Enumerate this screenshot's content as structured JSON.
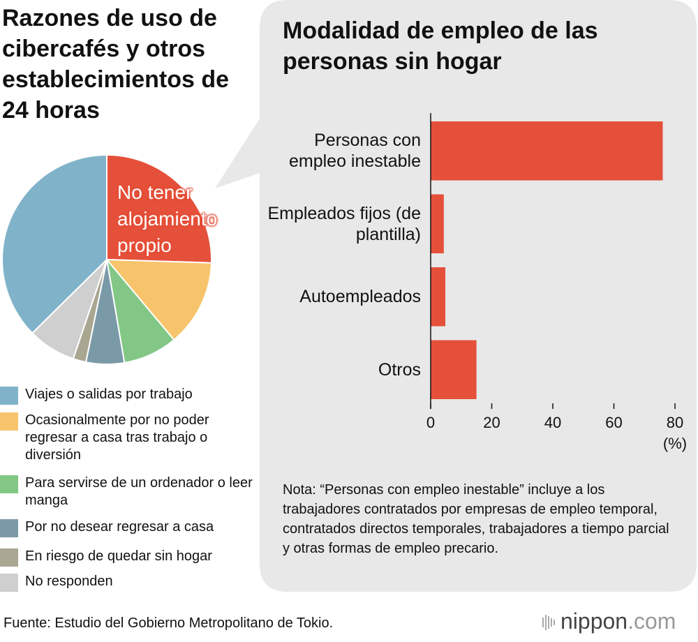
{
  "chart_data": [
    {
      "type": "pie",
      "title": "Razones de uso de cibercafés y otros establecimientos de 24 horas",
      "categories": [
        "No tener alojamiento propio",
        "Ocasionalmente por no poder regresar a casa tras trabajo o diversión",
        "Para servirse de un ordenador o leer manga",
        "Por no desear regresar a casa",
        "En riesgo de quedar sin hogar",
        "No responden",
        "Viajes o salidas por trabajo"
      ],
      "values": [
        25.5,
        13.4,
        8.4,
        5.9,
        2.0,
        7.4,
        37.4
      ],
      "colors": [
        "#e5503a",
        "#f7c46b",
        "#82c785",
        "#7b9aa8",
        "#a9a792",
        "#cfcfcf",
        "#80b3c9"
      ]
    },
    {
      "type": "bar",
      "orientation": "horizontal",
      "title": "Modalidad de empleo de las personas sin hogar",
      "categories": [
        "Personas con empleo inestable",
        "Empleados fijos (de plantilla)",
        "Autoempleados",
        "Otros"
      ],
      "values": [
        76,
        4.3,
        4.8,
        15
      ],
      "color": "#e5503a",
      "xlim": [
        0,
        80
      ],
      "xticks": [
        0,
        20,
        40,
        60,
        80
      ],
      "x_unit": "(%)",
      "note": "Nota: “Personas con empleo inestable” incluye a los trabajadores contratados por empresas de empleo temporal, contratados directos temporales, trabajadores a tiempo parcial y otras formas de empleo precario."
    }
  ],
  "source": "Fuente: Estudio del Gobierno Metropolitano de Tokio.",
  "logo": [
    "nippon",
    ".com"
  ]
}
